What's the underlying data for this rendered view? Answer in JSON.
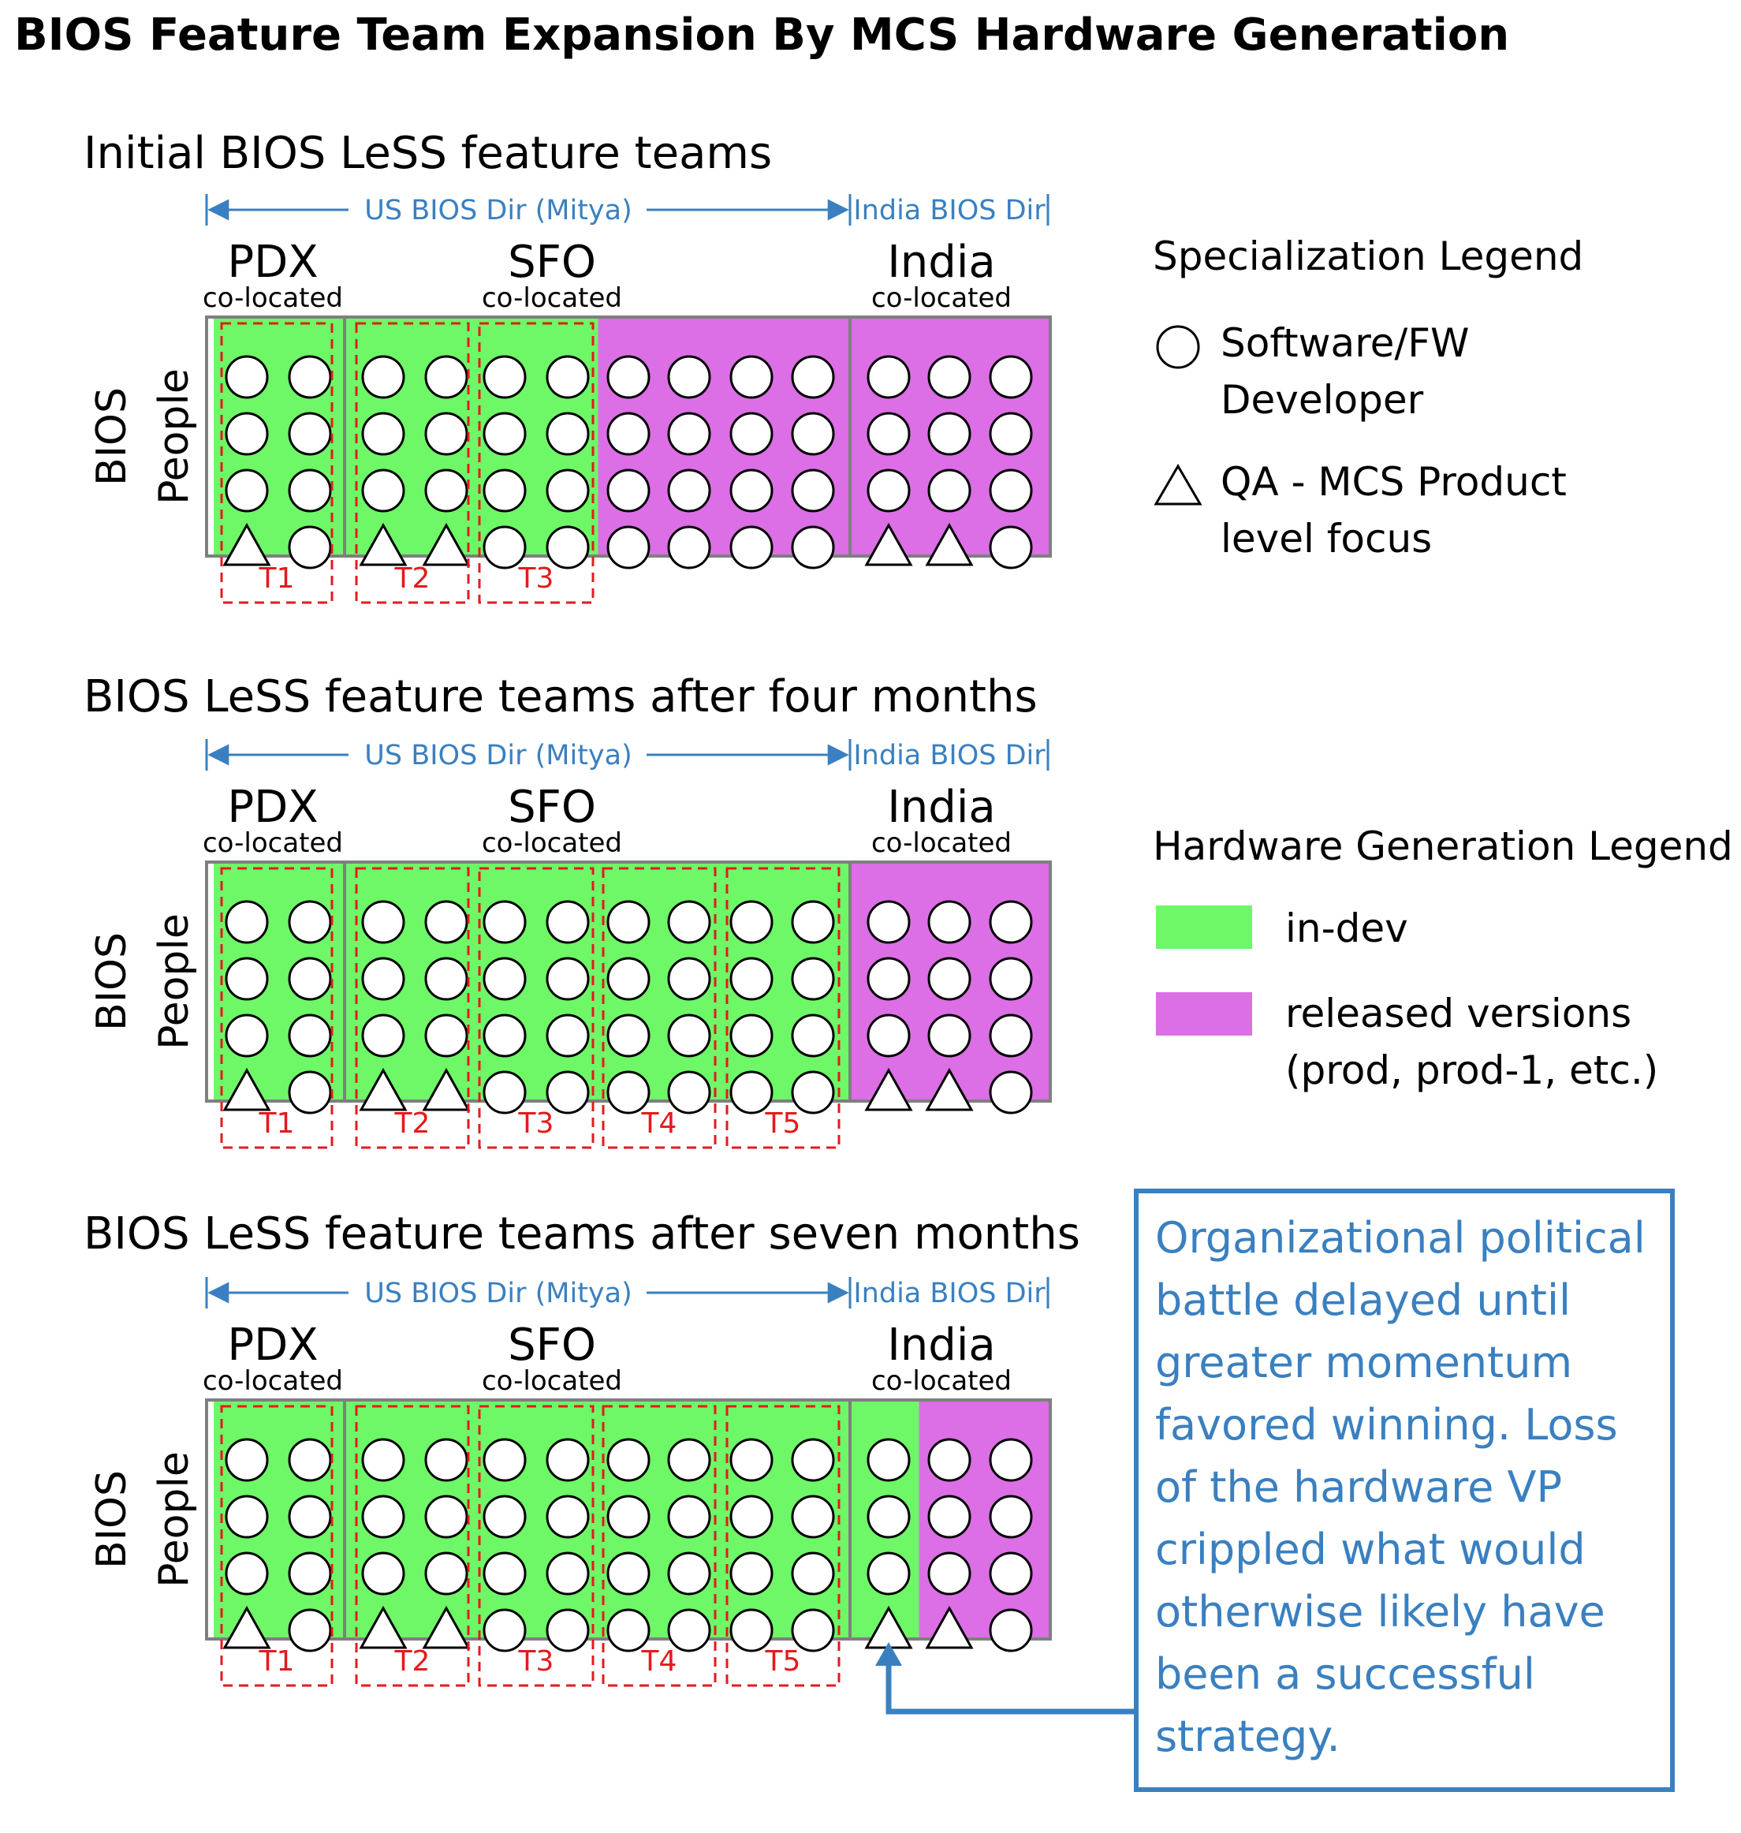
{
  "title": "BIOS Feature Team Expansion By MCS Hardware Generation",
  "colors": {
    "in_dev": "#6ef767",
    "released": "#dc6ee6",
    "team_border": "#e41a1c",
    "director": "#3a80c0",
    "note": "#3a80c0",
    "frame": "#7f7f7f"
  },
  "common": {
    "us_director": "US BIOS Dir (Mitya)",
    "india_director": "India BIOS Dir",
    "sites": [
      {
        "name": "PDX",
        "sub": "co-located"
      },
      {
        "name": "SFO",
        "sub": "co-located"
      },
      {
        "name": "India",
        "sub": "co-located"
      }
    ],
    "row_label_1": "BIOS",
    "row_label_2": "People"
  },
  "panels": [
    {
      "title": "Initial BIOS LeSS feature teams",
      "columns": [
        {
          "gen": "in-dev",
          "people": [
            "developer",
            "developer",
            "developer",
            "qa"
          ]
        },
        {
          "gen": "in-dev",
          "people": [
            "developer",
            "developer",
            "developer",
            "developer"
          ]
        },
        {
          "gen": "in-dev",
          "people": [
            "developer",
            "developer",
            "developer",
            "qa"
          ]
        },
        {
          "gen": "in-dev",
          "people": [
            "developer",
            "developer",
            "developer",
            "qa"
          ]
        },
        {
          "gen": "in-dev",
          "people": [
            "developer",
            "developer",
            "developer",
            "developer"
          ]
        },
        {
          "gen": "in-dev",
          "people": [
            "developer",
            "developer",
            "developer",
            "developer"
          ]
        },
        {
          "gen": "released",
          "people": [
            "developer",
            "developer",
            "developer",
            "developer"
          ]
        },
        {
          "gen": "released",
          "people": [
            "developer",
            "developer",
            "developer",
            "developer"
          ]
        },
        {
          "gen": "released",
          "people": [
            "developer",
            "developer",
            "developer",
            "developer"
          ]
        },
        {
          "gen": "released",
          "people": [
            "developer",
            "developer",
            "developer",
            "developer"
          ]
        },
        {
          "gen": "released",
          "people": [
            "developer",
            "developer",
            "developer",
            "qa"
          ]
        },
        {
          "gen": "released",
          "people": [
            "developer",
            "developer",
            "developer",
            "qa"
          ]
        },
        {
          "gen": "released",
          "people": [
            "developer",
            "developer",
            "developer",
            "developer"
          ]
        }
      ],
      "teams": [
        "T1",
        "T2",
        "T3"
      ]
    },
    {
      "title": "BIOS LeSS feature teams after four months",
      "columns": [
        {
          "gen": "in-dev",
          "people": [
            "developer",
            "developer",
            "developer",
            "qa"
          ]
        },
        {
          "gen": "in-dev",
          "people": [
            "developer",
            "developer",
            "developer",
            "developer"
          ]
        },
        {
          "gen": "in-dev",
          "people": [
            "developer",
            "developer",
            "developer",
            "qa"
          ]
        },
        {
          "gen": "in-dev",
          "people": [
            "developer",
            "developer",
            "developer",
            "qa"
          ]
        },
        {
          "gen": "in-dev",
          "people": [
            "developer",
            "developer",
            "developer",
            "developer"
          ]
        },
        {
          "gen": "in-dev",
          "people": [
            "developer",
            "developer",
            "developer",
            "developer"
          ]
        },
        {
          "gen": "in-dev",
          "people": [
            "developer",
            "developer",
            "developer",
            "developer"
          ]
        },
        {
          "gen": "in-dev",
          "people": [
            "developer",
            "developer",
            "developer",
            "developer"
          ]
        },
        {
          "gen": "in-dev",
          "people": [
            "developer",
            "developer",
            "developer",
            "developer"
          ]
        },
        {
          "gen": "in-dev",
          "people": [
            "developer",
            "developer",
            "developer",
            "developer"
          ]
        },
        {
          "gen": "released",
          "people": [
            "developer",
            "developer",
            "developer",
            "qa"
          ]
        },
        {
          "gen": "released",
          "people": [
            "developer",
            "developer",
            "developer",
            "qa"
          ]
        },
        {
          "gen": "released",
          "people": [
            "developer",
            "developer",
            "developer",
            "developer"
          ]
        }
      ],
      "teams": [
        "T1",
        "T2",
        "T3",
        "T4",
        "T5"
      ]
    },
    {
      "title": "BIOS LeSS feature teams after seven months",
      "columns": [
        {
          "gen": "in-dev",
          "people": [
            "developer",
            "developer",
            "developer",
            "qa"
          ]
        },
        {
          "gen": "in-dev",
          "people": [
            "developer",
            "developer",
            "developer",
            "developer"
          ]
        },
        {
          "gen": "in-dev",
          "people": [
            "developer",
            "developer",
            "developer",
            "qa"
          ]
        },
        {
          "gen": "in-dev",
          "people": [
            "developer",
            "developer",
            "developer",
            "qa"
          ]
        },
        {
          "gen": "in-dev",
          "people": [
            "developer",
            "developer",
            "developer",
            "developer"
          ]
        },
        {
          "gen": "in-dev",
          "people": [
            "developer",
            "developer",
            "developer",
            "developer"
          ]
        },
        {
          "gen": "in-dev",
          "people": [
            "developer",
            "developer",
            "developer",
            "developer"
          ]
        },
        {
          "gen": "in-dev",
          "people": [
            "developer",
            "developer",
            "developer",
            "developer"
          ]
        },
        {
          "gen": "in-dev",
          "people": [
            "developer",
            "developer",
            "developer",
            "developer"
          ]
        },
        {
          "gen": "in-dev",
          "people": [
            "developer",
            "developer",
            "developer",
            "developer"
          ]
        },
        {
          "gen": "in-dev",
          "people": [
            "developer",
            "developer",
            "developer",
            "qa"
          ]
        },
        {
          "gen": "released",
          "people": [
            "developer",
            "developer",
            "developer",
            "qa"
          ]
        },
        {
          "gen": "released",
          "people": [
            "developer",
            "developer",
            "developer",
            "developer"
          ]
        }
      ],
      "teams": [
        "T1",
        "T2",
        "T3",
        "T4",
        "T5"
      ]
    }
  ],
  "specialization_legend": {
    "title": "Specialization Legend",
    "items": [
      {
        "icon": "circle",
        "line1": "Software/FW",
        "line2": "Developer"
      },
      {
        "icon": "triangle",
        "line1": "QA - MCS Product",
        "line2": "level focus"
      }
    ]
  },
  "hardware_legend": {
    "title": "Hardware Generation Legend",
    "items": [
      {
        "key": "in-dev",
        "line1": "in-dev",
        "line2": ""
      },
      {
        "key": "released",
        "line1": "released versions",
        "line2": "(prod, prod-1, etc.)"
      }
    ]
  },
  "note": {
    "lines": [
      "Organizational political",
      "battle delayed until",
      "greater momentum",
      "favored winning. Loss",
      "of the hardware VP",
      "crippled what would",
      "otherwise likely have",
      "been a successful",
      "strategy."
    ]
  }
}
